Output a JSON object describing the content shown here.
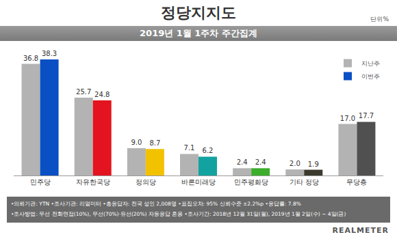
{
  "chart_data": {
    "type": "bar",
    "title": "정당지지도",
    "subtitle": "2019년 1월 1주차 주간집계",
    "annotations": {
      "unit": "단위%",
      "footer": [
        "•의뢰기관: YTN •조사기관: 리얼미터 •총응답자: 전국 성인 2,008명 •표집오차: 95% 신뢰수준 ±2.2%p •응답률: 7.8%",
        "•조사방법: 무선 전화면접(10%), 무선(70%)·유선(20%) 자동응답 혼용 •조사기간: 2018년 12월 31일(월), 2019년 1월 2일(수) ~ 4일(금)"
      ],
      "brand": "REALMETER"
    },
    "categories": [
      "민주당",
      "자유한국당",
      "정의당",
      "바른미래당",
      "민주평화당",
      "기타 정당",
      "무당층"
    ],
    "series": [
      {
        "name": "지난주",
        "color": "#b3b3b3",
        "values": [
          36.8,
          25.7,
          9.0,
          7.1,
          2.4,
          2.0,
          17.0
        ],
        "value_labels": [
          "36.8",
          "25.7",
          "9.0",
          "7.1",
          "2.4",
          "2.0",
          "17.0"
        ]
      },
      {
        "name": "이번주",
        "colors": [
          "#0a4fc4",
          "#e3141f",
          "#f2c200",
          "#12a3a0",
          "#3dae2b",
          "#3b3a2c",
          "#505050"
        ],
        "values": [
          38.3,
          24.8,
          8.7,
          6.2,
          2.4,
          1.9,
          17.7
        ],
        "value_labels": [
          "38.3",
          "24.8",
          "8.7",
          "6.2",
          "2.4",
          "1.9",
          "17.7"
        ]
      }
    ],
    "data_labels": true,
    "legend": "top right",
    "tick_labels": "x",
    "grid": false
  }
}
